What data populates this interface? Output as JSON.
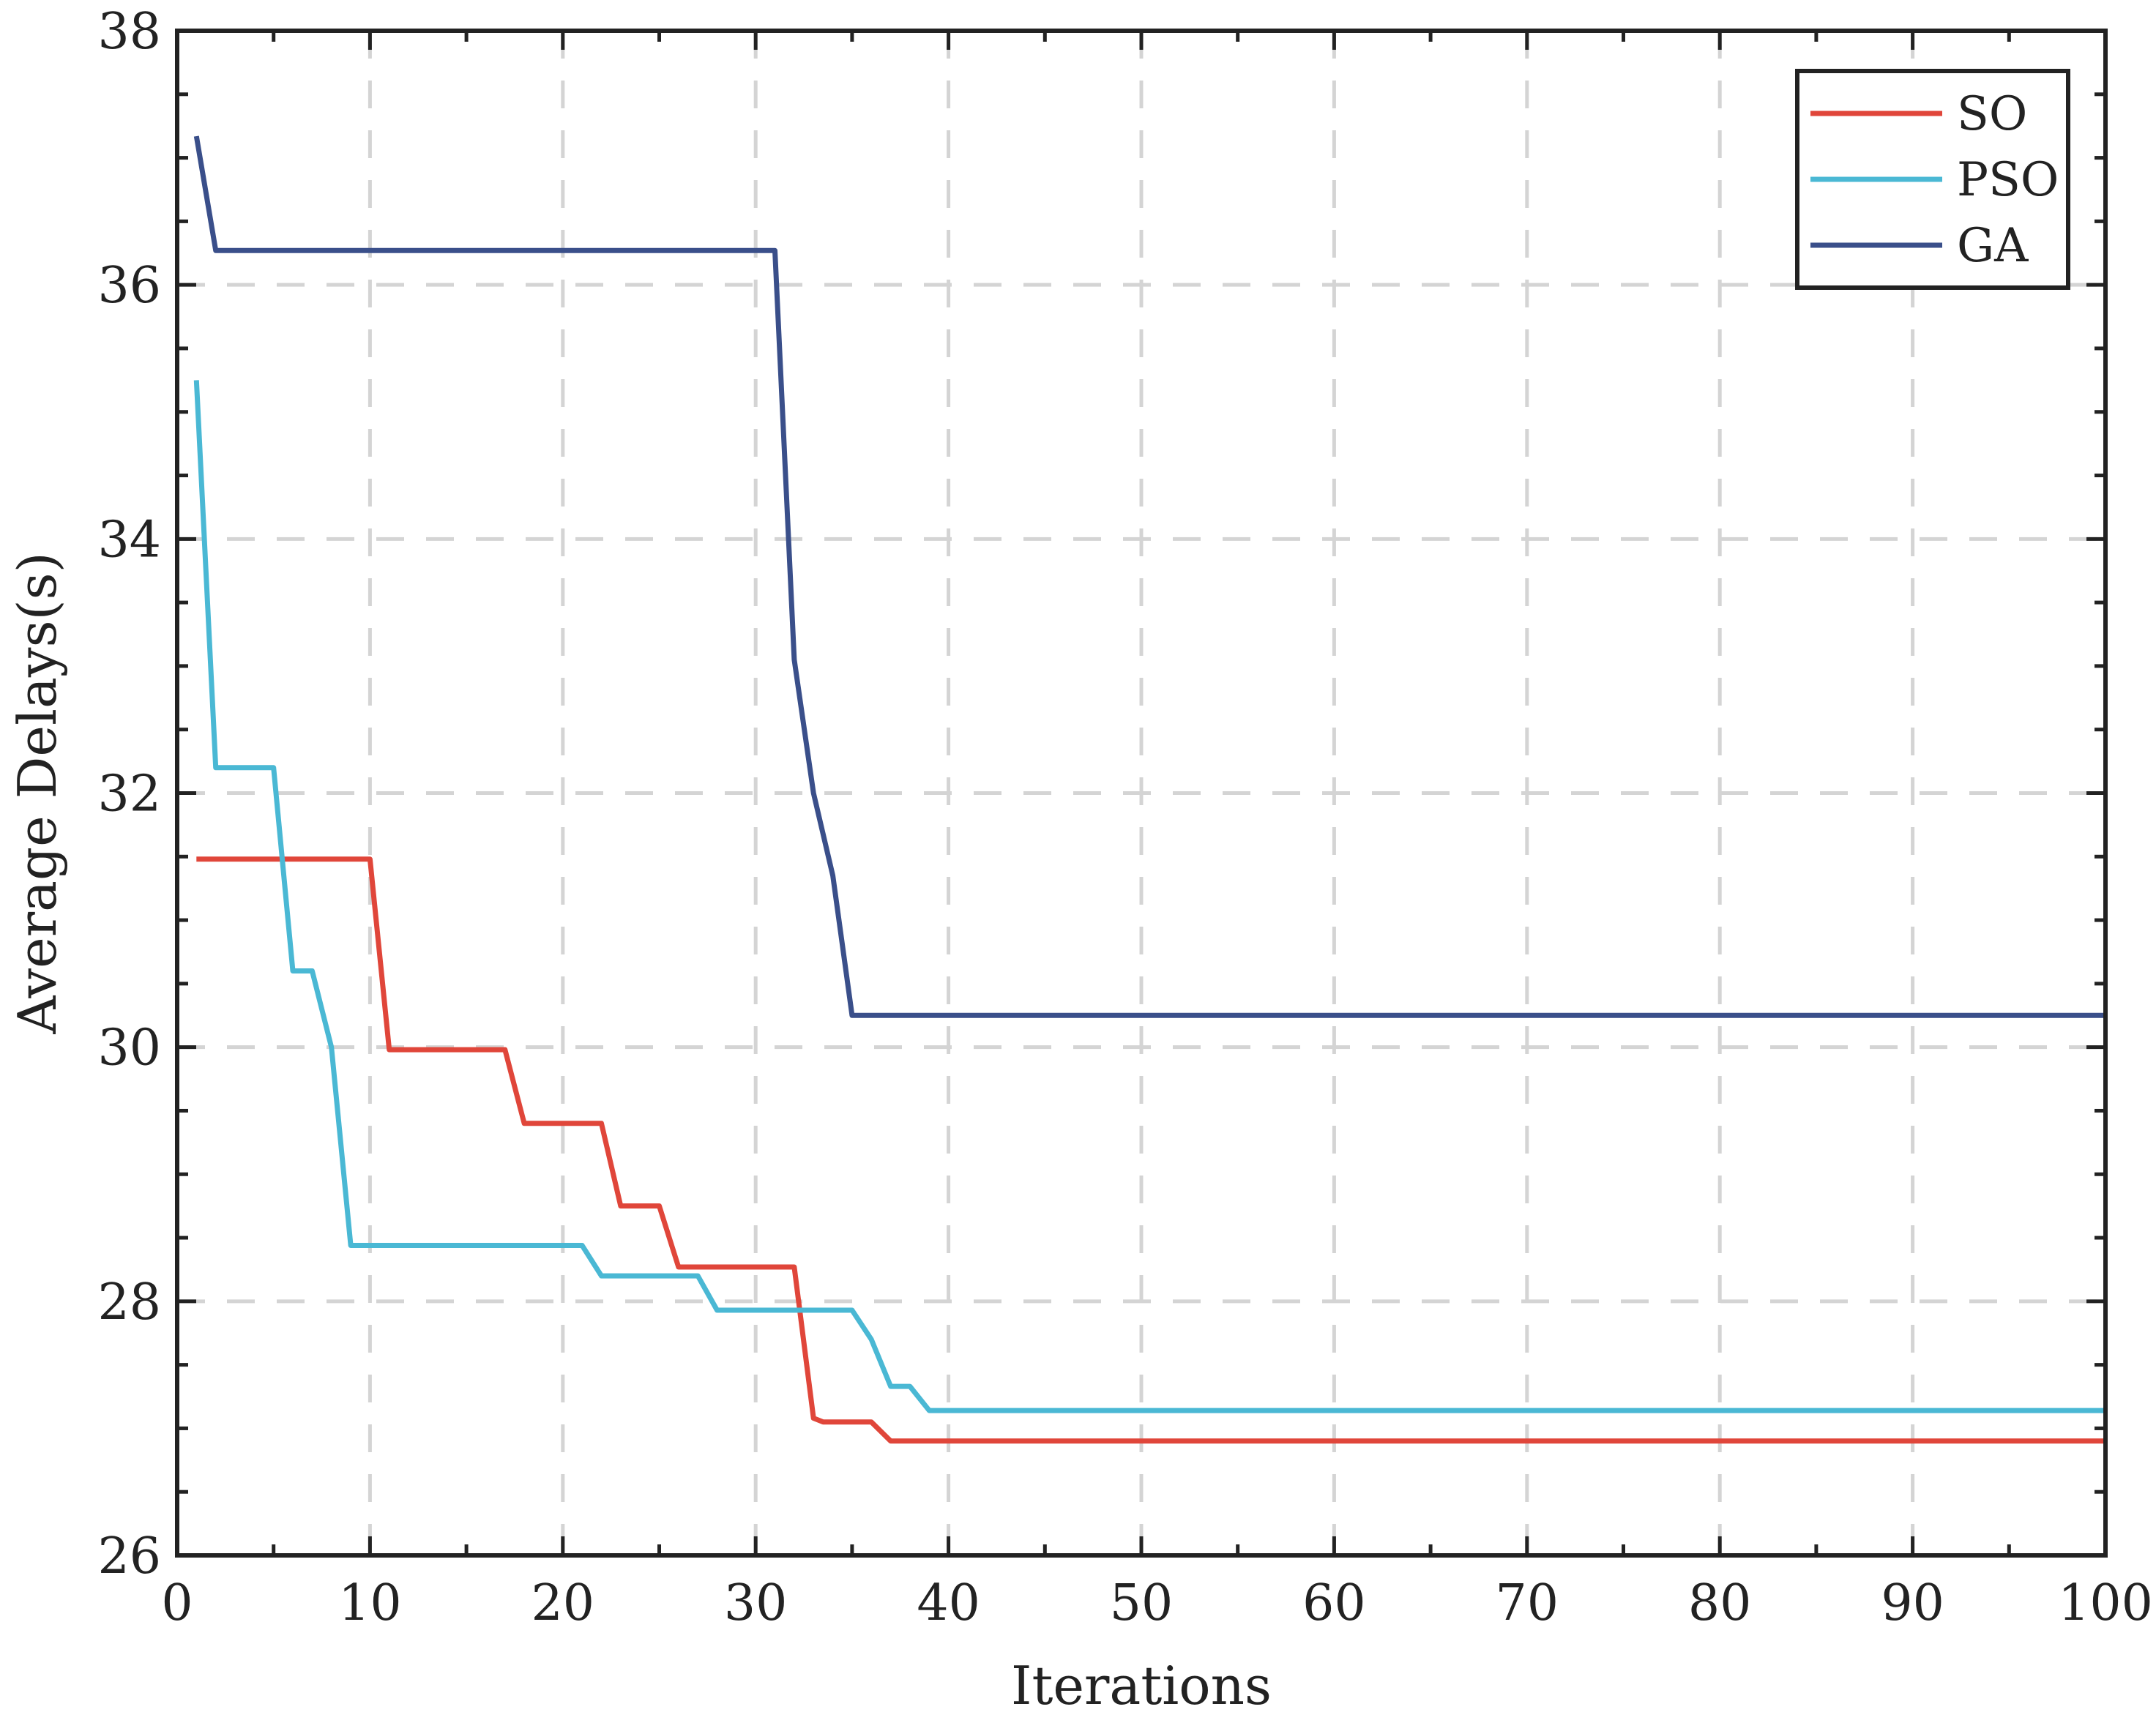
{
  "chart_data": {
    "type": "line",
    "title": "",
    "xlabel": "Iterations",
    "ylabel": "Average Delays(s)",
    "xlim": [
      0,
      100
    ],
    "ylim": [
      26,
      38
    ],
    "xticks": [
      0,
      10,
      20,
      30,
      40,
      50,
      60,
      70,
      80,
      90,
      100
    ],
    "yticks": [
      26,
      28,
      30,
      32,
      34,
      36,
      38
    ],
    "grid": true,
    "legend_position": "top-right",
    "series": [
      {
        "name": "SO",
        "color": "#e0463a",
        "points": [
          [
            1,
            31.48
          ],
          [
            10,
            31.48
          ],
          [
            11,
            29.98
          ],
          [
            17,
            29.98
          ],
          [
            18,
            29.4
          ],
          [
            22,
            29.4
          ],
          [
            23,
            28.75
          ],
          [
            25,
            28.75
          ],
          [
            26,
            28.27
          ],
          [
            32,
            28.27
          ],
          [
            33,
            27.08
          ],
          [
            33.5,
            27.05
          ],
          [
            36,
            27.05
          ],
          [
            37,
            26.9
          ],
          [
            100,
            26.9
          ]
        ]
      },
      {
        "name": "PSO",
        "color": "#4ab8d4",
        "points": [
          [
            1,
            35.25
          ],
          [
            2,
            32.2
          ],
          [
            5,
            32.2
          ],
          [
            6,
            30.6
          ],
          [
            7,
            30.6
          ],
          [
            8,
            30.0
          ],
          [
            9,
            28.44
          ],
          [
            21,
            28.44
          ],
          [
            22,
            28.2
          ],
          [
            27,
            28.2
          ],
          [
            28,
            27.93
          ],
          [
            35,
            27.93
          ],
          [
            36,
            27.7
          ],
          [
            37,
            27.33
          ],
          [
            38,
            27.33
          ],
          [
            39,
            27.14
          ],
          [
            100,
            27.14
          ]
        ]
      },
      {
        "name": "GA",
        "color": "#3a4f8a",
        "points": [
          [
            1,
            37.17
          ],
          [
            2,
            36.27
          ],
          [
            31,
            36.27
          ],
          [
            32,
            33.05
          ],
          [
            33,
            32.0
          ],
          [
            34,
            31.35
          ],
          [
            35,
            30.25
          ],
          [
            100,
            30.25
          ]
        ]
      }
    ]
  }
}
